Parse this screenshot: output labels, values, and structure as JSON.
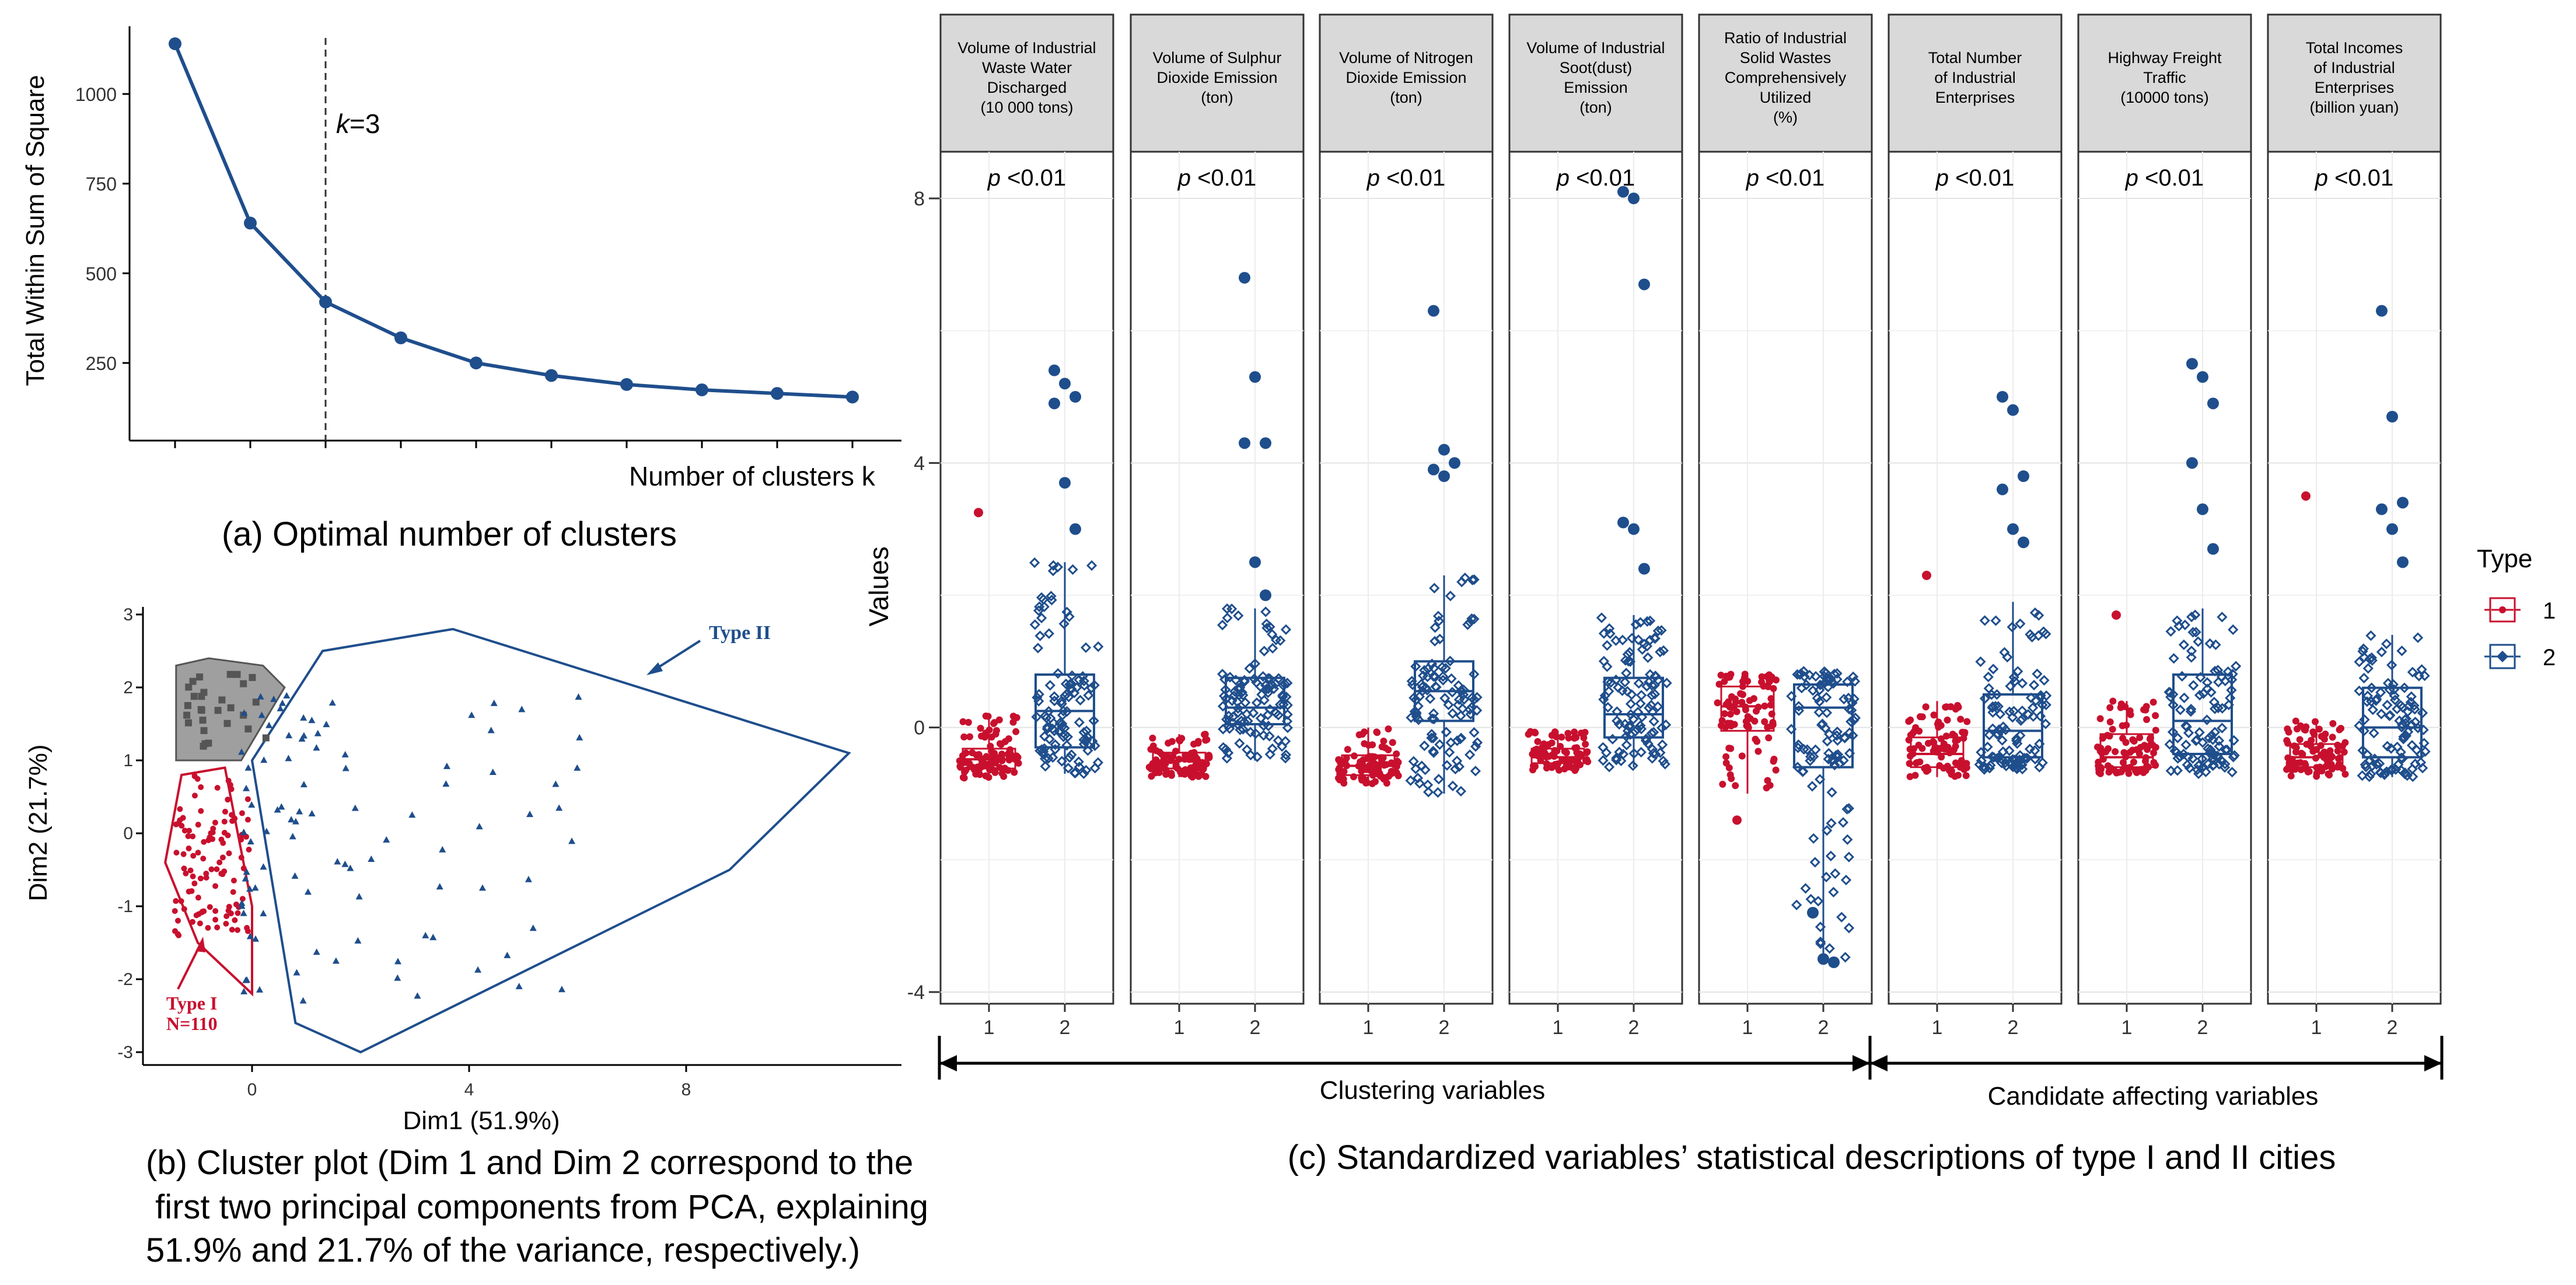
{
  "panel_a": {
    "caption": "(a) Optimal number of clusters",
    "ylabel": "Total Within Sum of Square",
    "xlabel": "Number of clusters k",
    "annotation": "k=3",
    "ytick_labels": [
      "250",
      "500",
      "750",
      "1000"
    ]
  },
  "panel_b": {
    "caption_lines": [
      "(b) Cluster plot (Dim 1 and Dim 2 correspond to the",
      " first two principal components from PCA, explaining",
      "51.9% and 21.7% of the variance, respectively.)"
    ],
    "xlabel": "Dim1 (51.9%)",
    "ylabel": "Dim2 (21.7%)",
    "xtick_labels": [
      "0",
      "4",
      "8"
    ],
    "ytick_labels": [
      "-3",
      "-2",
      "-1",
      "0",
      "1",
      "2",
      "3"
    ],
    "label_type2": "Type II",
    "label_type1_line1": "Type I",
    "label_type1_line2": "N=110"
  },
  "panel_c": {
    "caption": "(c) Standardized variables’ statistical descriptions of type I and II cities",
    "ylabel": "Values",
    "ytick_labels": [
      "-4",
      "0",
      "4",
      "8"
    ],
    "xtick_labels": [
      "1",
      "2"
    ],
    "group_clustering": "Clustering variables",
    "group_candidate": "Candidate affecting variables",
    "legend_title": "Type",
    "legend_items": [
      "1",
      "2"
    ],
    "facets": [
      {
        "lines": [
          "Volume of Industrial",
          "Waste Water",
          "Discharged",
          "(10 000 tons)"
        ],
        "p": "<0.01"
      },
      {
        "lines": [
          "Volume of Sulphur",
          "Dioxide Emission",
          "(ton)"
        ],
        "p": "<0.01"
      },
      {
        "lines": [
          "Volume of Nitrogen",
          "Dioxide Emission",
          "(ton)"
        ],
        "p": "<0.01"
      },
      {
        "lines": [
          "Volume of Industrial",
          "Soot(dust)",
          "Emission",
          "(ton)"
        ],
        "p": "<0.01"
      },
      {
        "lines": [
          "Ratio of Industrial",
          "Solid Wastes",
          "Comprehensively",
          "Utilized",
          "(%)"
        ],
        "p": "<0.01"
      },
      {
        "lines": [
          "Total Number",
          "of Industrial",
          "Enterprises"
        ],
        "p": "<0.01"
      },
      {
        "lines": [
          "Highway Freight",
          "Traffic",
          "(10000 tons)"
        ],
        "p": "<0.01"
      },
      {
        "lines": [
          "Total Incomes",
          "of Industrial",
          "Enterprises",
          "(billion yuan)"
        ],
        "p": "<0.01"
      }
    ]
  },
  "colors": {
    "type1": "#c8102e",
    "type2": "#1f4e8c",
    "cluster3": "#7f7f7f",
    "line": "#1f4e8c"
  },
  "chart_data": [
    {
      "type": "line",
      "x": [
        1,
        2,
        3,
        4,
        5,
        6,
        7,
        8,
        9,
        10
      ],
      "y": [
        1140,
        640,
        420,
        320,
        250,
        215,
        190,
        175,
        165,
        155
      ],
      "ylim": [
        180,
        1140
      ],
      "vline_x": 3
    },
    {
      "type": "scatter",
      "xlim": [
        -1.5,
        11
      ],
      "ylim": [
        -3.2,
        3
      ],
      "hull_type2": [
        [
          0,
          1
        ],
        [
          0.8,
          -2.6
        ],
        [
          2,
          -3
        ],
        [
          8.8,
          -0.5
        ],
        [
          11,
          1.1
        ],
        [
          3.7,
          2.8
        ],
        [
          1.3,
          2.5
        ]
      ],
      "hull_type1": [
        [
          -1.6,
          -0.4
        ],
        [
          -1.3,
          0.8
        ],
        [
          -0.5,
          0.9
        ],
        [
          0,
          -1
        ],
        [
          0,
          -2.2
        ],
        [
          -1,
          -1.5
        ]
      ],
      "hull_type3": [
        [
          -1.4,
          2.3
        ],
        [
          -0.8,
          2.4
        ],
        [
          0.2,
          2.3
        ],
        [
          0.6,
          2
        ],
        [
          -0.2,
          1
        ],
        [
          -1.4,
          1
        ]
      ]
    },
    {
      "type": "boxplot",
      "ylim": [
        -4,
        8
      ],
      "categories": [
        "1",
        "2"
      ],
      "series": [
        {
          "name": "1",
          "boxes": [
            [
              -0.78,
              -0.62,
              -0.48,
              -0.32,
              0.2
            ],
            [
              -0.75,
              -0.62,
              -0.5,
              -0.38,
              -0.1
            ],
            [
              -0.85,
              -0.72,
              -0.58,
              -0.42,
              0.0
            ],
            [
              -0.65,
              -0.54,
              -0.45,
              -0.32,
              -0.05
            ],
            [
              -1.0,
              -0.05,
              0.32,
              0.62,
              0.82
            ],
            [
              -0.75,
              -0.6,
              -0.4,
              -0.15,
              0.4
            ],
            [
              -0.7,
              -0.6,
              -0.45,
              -0.1,
              0.4
            ],
            [
              -0.75,
              -0.6,
              -0.45,
              -0.25,
              0.1
            ]
          ]
        },
        {
          "name": "2",
          "boxes": [
            [
              -0.7,
              -0.3,
              0.25,
              0.8,
              2.5
            ],
            [
              -0.5,
              0.05,
              0.3,
              0.75,
              1.8
            ],
            [
              -1.0,
              0.1,
              0.55,
              1.0,
              2.3
            ],
            [
              -0.6,
              -0.15,
              0.2,
              0.75,
              1.7
            ],
            [
              -3.5,
              -0.6,
              0.3,
              0.65,
              0.85
            ],
            [
              -0.65,
              -0.45,
              -0.05,
              0.5,
              1.9
            ],
            [
              -0.7,
              -0.4,
              0.1,
              0.8,
              1.8
            ],
            [
              -0.75,
              -0.45,
              0.0,
              0.6,
              1.4
            ]
          ]
        }
      ],
      "outliers_type1": [
        [
          3.25
        ],
        [],
        [],
        [],
        [
          -1.4
        ],
        [
          2.3
        ],
        [
          1.7
        ],
        [
          3.5
        ]
      ],
      "outliers_type2": [
        [
          5.4,
          5.2,
          5.0,
          4.9,
          3.7,
          3.0
        ],
        [
          6.8,
          5.3,
          4.3,
          4.3,
          2.5,
          2.0
        ],
        [
          6.3,
          4.2,
          4.0,
          3.9,
          3.8
        ],
        [
          8.1,
          8.0,
          6.7,
          3.1,
          3.0,
          2.4
        ],
        [
          -2.8,
          -3.5,
          -3.55
        ],
        [
          5.0,
          4.8,
          3.8,
          3.6,
          3.0,
          2.8
        ],
        [
          5.5,
          5.3,
          4.9,
          4.0,
          3.3,
          2.7
        ],
        [
          6.3,
          4.7,
          3.4,
          3.3,
          3.0,
          2.5
        ]
      ]
    }
  ]
}
